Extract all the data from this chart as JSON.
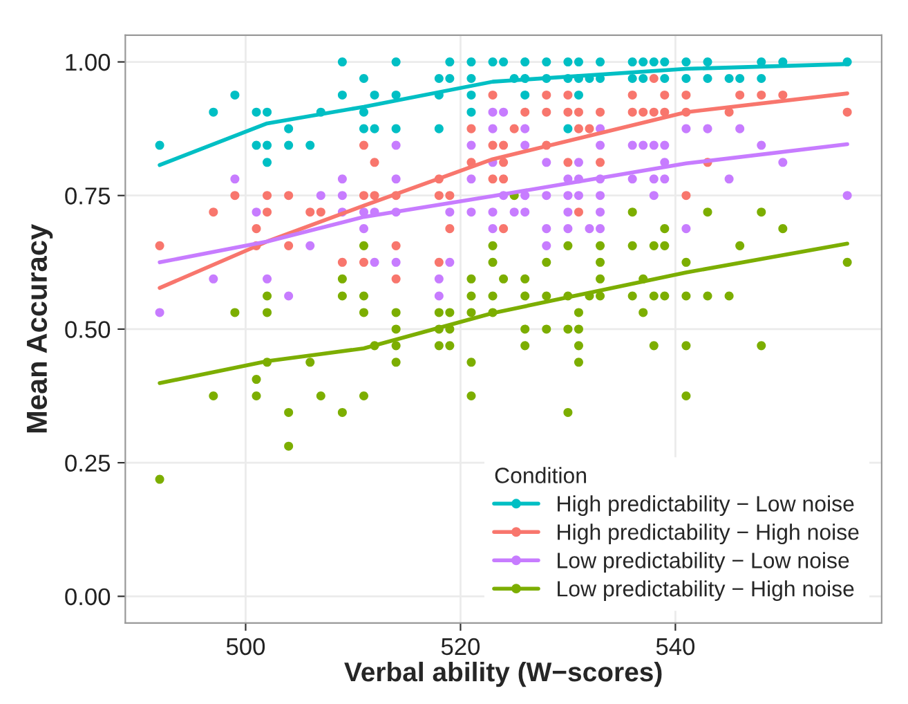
{
  "chart_data": {
    "type": "scatter",
    "xlabel": "Verbal ability (W−scores)",
    "ylabel": "Mean Accuracy",
    "legend_title": "Condition",
    "legend": "bottom right",
    "grid": true,
    "marker": "circle",
    "xlim": [
      488.8,
      559.2
    ],
    "xticks": [
      500,
      520,
      540
    ],
    "ylim": [
      -0.05,
      1.05
    ],
    "yticks": [
      {
        "value": 0,
        "label": "0.00"
      },
      {
        "value": 0.25,
        "label": "0.25"
      },
      {
        "value": 0.5,
        "label": "0.50"
      },
      {
        "value": 0.75,
        "label": "0.75"
      },
      {
        "value": 1,
        "label": "1.00"
      }
    ],
    "series": [
      {
        "name": "High predictability − Low noise",
        "color": "#00bfc4",
        "x": [
          492,
          497,
          499,
          501,
          502,
          501,
          502,
          502,
          504,
          504,
          506,
          507,
          509,
          509,
          511,
          511,
          511,
          512,
          512,
          514,
          514,
          514,
          518,
          518,
          518,
          519,
          519,
          521,
          521,
          521,
          521,
          523,
          524,
          526,
          528,
          530,
          531,
          533,
          536,
          537,
          538,
          539,
          541,
          543,
          548,
          550,
          556,
          525,
          526,
          528,
          530,
          531,
          532,
          533,
          536,
          537,
          539,
          541,
          543,
          545,
          546,
          548,
          526,
          531,
          530
        ],
        "values": [
          0.844,
          0.906,
          0.938,
          0.906,
          0.906,
          0.844,
          0.844,
          0.812,
          0.875,
          0.844,
          0.844,
          0.906,
          1.0,
          0.938,
          0.969,
          0.906,
          0.875,
          0.875,
          0.938,
          1.0,
          0.938,
          0.875,
          0.969,
          0.938,
          0.875,
          1.0,
          0.969,
          1.0,
          0.969,
          0.938,
          0.906,
          1.0,
          1.0,
          1.0,
          1.0,
          1.0,
          1.0,
          1.0,
          1.0,
          1.0,
          1.0,
          1.0,
          1.0,
          1.0,
          1.0,
          1.0,
          1.0,
          0.969,
          0.969,
          0.969,
          0.969,
          0.969,
          0.969,
          0.969,
          0.969,
          0.969,
          0.969,
          0.969,
          0.969,
          0.969,
          0.969,
          0.969,
          0.938,
          0.938,
          0.875
        ]
      },
      {
        "name": "High predictability − High noise",
        "color": "#f8766d",
        "x": [
          492,
          497,
          499,
          501,
          501,
          502,
          502,
          504,
          504,
          506,
          507,
          509,
          511,
          511,
          511,
          512,
          512,
          514,
          514,
          514,
          518,
          518,
          518,
          519,
          519,
          521,
          521,
          523,
          523,
          523,
          538,
          528,
          530,
          536,
          539,
          541,
          546,
          548,
          550,
          526,
          528,
          530,
          531,
          533,
          536,
          537,
          538,
          539,
          541,
          545,
          556,
          525,
          531,
          532,
          524,
          528,
          524,
          530,
          533,
          543,
          524,
          541,
          531,
          524
        ],
        "values": [
          0.656,
          0.719,
          0.75,
          0.688,
          0.656,
          0.75,
          0.719,
          0.75,
          0.656,
          0.719,
          0.719,
          0.625,
          0.844,
          0.75,
          0.625,
          0.812,
          0.75,
          0.75,
          0.656,
          0.594,
          0.781,
          0.75,
          0.625,
          0.75,
          0.688,
          0.875,
          0.812,
          0.938,
          0.844,
          0.781,
          0.969,
          0.938,
          0.938,
          0.938,
          0.938,
          0.938,
          0.938,
          0.938,
          0.938,
          0.906,
          0.906,
          0.906,
          0.906,
          0.906,
          0.906,
          0.906,
          0.906,
          0.906,
          0.906,
          0.906,
          0.906,
          0.875,
          0.875,
          0.875,
          0.844,
          0.844,
          0.812,
          0.812,
          0.812,
          0.812,
          0.781,
          0.75,
          0.719,
          0.688
        ]
      },
      {
        "name": "Low predictability − Low noise",
        "color": "#c77cff",
        "x": [
          492,
          497,
          499,
          501,
          502,
          504,
          506,
          507,
          509,
          509,
          509,
          511,
          511,
          512,
          512,
          514,
          514,
          514,
          514,
          518,
          518,
          519,
          519,
          521,
          521,
          523,
          523,
          523,
          523,
          523,
          524,
          526,
          533,
          541,
          543,
          546,
          526,
          533,
          536,
          537,
          538,
          539,
          548,
          528,
          531,
          539,
          550,
          530,
          531,
          533,
          536,
          538,
          539,
          545,
          524,
          526,
          528,
          530,
          531,
          533,
          538,
          556,
          521,
          525,
          526,
          530,
          533,
          528,
          530,
          532,
          533,
          541,
          528
        ],
        "values": [
          0.531,
          0.594,
          0.781,
          0.719,
          0.594,
          0.562,
          0.656,
          0.75,
          0.781,
          0.75,
          0.719,
          0.719,
          0.688,
          0.719,
          0.625,
          0.844,
          0.781,
          0.719,
          0.625,
          0.594,
          0.562,
          0.719,
          0.625,
          0.844,
          0.781,
          0.906,
          0.875,
          0.812,
          0.719,
          0.688,
          0.906,
          0.875,
          0.875,
          0.875,
          0.875,
          0.875,
          0.844,
          0.844,
          0.844,
          0.844,
          0.844,
          0.844,
          0.844,
          0.812,
          0.812,
          0.812,
          0.812,
          0.781,
          0.781,
          0.781,
          0.781,
          0.781,
          0.781,
          0.781,
          0.75,
          0.75,
          0.75,
          0.75,
          0.75,
          0.75,
          0.75,
          0.75,
          0.719,
          0.719,
          0.719,
          0.719,
          0.719,
          0.688,
          0.688,
          0.688,
          0.688,
          0.688,
          0.656
        ]
      },
      {
        "name": "Low predictability − High noise",
        "color": "#7cae00",
        "x": [
          492,
          497,
          499,
          501,
          501,
          502,
          502,
          502,
          504,
          504,
          506,
          507,
          509,
          509,
          509,
          511,
          511,
          511,
          511,
          512,
          514,
          514,
          514,
          514,
          518,
          518,
          518,
          519,
          519,
          519,
          521,
          521,
          521,
          521,
          521,
          523,
          523,
          523,
          523,
          525,
          536,
          543,
          548,
          539,
          550,
          530,
          533,
          536,
          538,
          539,
          546,
          528,
          533,
          541,
          556,
          524,
          526,
          533,
          537,
          526,
          528,
          530,
          532,
          533,
          536,
          538,
          539,
          541,
          543,
          545,
          531,
          537,
          526,
          528,
          530,
          531,
          526,
          531,
          538,
          541,
          548,
          531,
          541,
          530
        ],
        "values": [
          0.219,
          0.375,
          0.531,
          0.406,
          0.375,
          0.562,
          0.531,
          0.438,
          0.344,
          0.281,
          0.438,
          0.375,
          0.594,
          0.562,
          0.344,
          0.656,
          0.562,
          0.531,
          0.375,
          0.469,
          0.531,
          0.5,
          0.469,
          0.438,
          0.531,
          0.5,
          0.469,
          0.531,
          0.5,
          0.469,
          0.594,
          0.562,
          0.531,
          0.438,
          0.375,
          0.656,
          0.625,
          0.562,
          0.531,
          0.75,
          0.719,
          0.719,
          0.719,
          0.688,
          0.688,
          0.656,
          0.656,
          0.656,
          0.656,
          0.656,
          0.656,
          0.625,
          0.625,
          0.625,
          0.625,
          0.594,
          0.594,
          0.594,
          0.594,
          0.562,
          0.562,
          0.562,
          0.562,
          0.562,
          0.562,
          0.562,
          0.562,
          0.562,
          0.562,
          0.562,
          0.531,
          0.531,
          0.5,
          0.5,
          0.5,
          0.5,
          0.469,
          0.469,
          0.469,
          0.469,
          0.469,
          0.438,
          0.375,
          0.344
        ]
      },
      {
        "color": "#00bfc4",
        "type": "line",
        "marker": "none",
        "x": [
          492,
          502,
          511,
          523,
          541,
          556
        ],
        "values": [
          0.807,
          0.885,
          0.916,
          0.963,
          0.987,
          0.996
        ]
      },
      {
        "color": "#f8766d",
        "type": "line",
        "marker": "none",
        "x": [
          492,
          502,
          511,
          523,
          541,
          556
        ],
        "values": [
          0.577,
          0.664,
          0.731,
          0.818,
          0.906,
          0.941
        ]
      },
      {
        "color": "#c77cff",
        "type": "line",
        "marker": "none",
        "x": [
          492,
          502,
          511,
          523,
          541,
          556
        ],
        "values": [
          0.625,
          0.664,
          0.71,
          0.749,
          0.81,
          0.846
        ]
      },
      {
        "color": "#7cae00",
        "type": "line",
        "marker": "none",
        "x": [
          492,
          502,
          511,
          523,
          541,
          556
        ],
        "values": [
          0.399,
          0.44,
          0.464,
          0.53,
          0.606,
          0.66
        ]
      }
    ]
  }
}
